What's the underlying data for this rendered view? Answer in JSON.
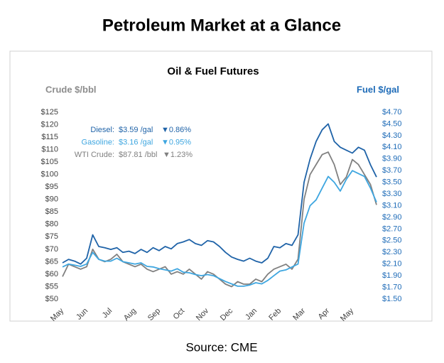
{
  "page_title": "Petroleum Market at a Glance",
  "source": "Source: CME",
  "chart_data": {
    "type": "line",
    "title": "Oil & Fuel Futures",
    "y_label": "Crude $/bbl",
    "y2_label": "Fuel $/gal",
    "categories": [
      "May",
      null,
      null,
      null,
      "Jun",
      null,
      null,
      null,
      "Jul",
      null,
      null,
      null,
      "Aug",
      null,
      null,
      null,
      "Sep",
      null,
      null,
      null,
      "Oct",
      null,
      null,
      null,
      "Nov",
      null,
      null,
      null,
      "Dec",
      null,
      null,
      null,
      "Jan",
      null,
      null,
      null,
      "Feb",
      null,
      null,
      null,
      "Mar",
      null,
      null,
      null,
      "Apr",
      null,
      null,
      null,
      "May",
      null,
      null,
      null,
      null
    ],
    "ylim": [
      50,
      125
    ],
    "yticks": [
      {
        "value": 50,
        "label": "$50"
      },
      {
        "value": 55,
        "label": "$55"
      },
      {
        "value": 60,
        "label": "$60"
      },
      {
        "value": 65,
        "label": "$65"
      },
      {
        "value": 70,
        "label": "$70"
      },
      {
        "value": 75,
        "label": "$75"
      },
      {
        "value": 80,
        "label": "$80"
      },
      {
        "value": 85,
        "label": "$85"
      },
      {
        "value": 90,
        "label": "$90"
      },
      {
        "value": 95,
        "label": "$95"
      },
      {
        "value": 100,
        "label": "$100"
      },
      {
        "value": 105,
        "label": "$105"
      },
      {
        "value": 110,
        "label": "$110"
      },
      {
        "value": 115,
        "label": "$115"
      },
      {
        "value": 120,
        "label": "$120"
      },
      {
        "value": 125,
        "label": "$125"
      }
    ],
    "y2lim": [
      1.5,
      4.7
    ],
    "y2ticks": [
      {
        "value": 1.5,
        "label": "$1.50"
      },
      {
        "value": 1.7,
        "label": "$1.70"
      },
      {
        "value": 1.9,
        "label": "$1.90"
      },
      {
        "value": 2.1,
        "label": "$2.10"
      },
      {
        "value": 2.3,
        "label": "$2.30"
      },
      {
        "value": 2.5,
        "label": "$2.50"
      },
      {
        "value": 2.7,
        "label": "$2.70"
      },
      {
        "value": 2.9,
        "label": "$2.90"
      },
      {
        "value": 3.1,
        "label": "$3.10"
      },
      {
        "value": 3.3,
        "label": "$3.30"
      },
      {
        "value": 3.5,
        "label": "$3.50"
      },
      {
        "value": 3.7,
        "label": "$3.70"
      },
      {
        "value": 3.9,
        "label": "$3.90"
      },
      {
        "value": 4.1,
        "label": "$4.10"
      },
      {
        "value": 4.3,
        "label": "$4.30"
      },
      {
        "value": 4.5,
        "label": "$4.50"
      },
      {
        "value": 4.7,
        "label": "$4.70"
      }
    ],
    "grid": false,
    "series": [
      {
        "name": "Diesel:",
        "price_label": "$3.59 /gal",
        "change_label": "▼0.86%",
        "color": "#1f63a8",
        "axis": "y2",
        "values": [
          2.12,
          2.18,
          2.15,
          2.1,
          2.2,
          2.6,
          2.4,
          2.38,
          2.35,
          2.38,
          2.3,
          2.32,
          2.28,
          2.35,
          2.3,
          2.38,
          2.33,
          2.4,
          2.36,
          2.45,
          2.48,
          2.52,
          2.45,
          2.42,
          2.5,
          2.48,
          2.4,
          2.3,
          2.22,
          2.18,
          2.15,
          2.2,
          2.15,
          2.12,
          2.2,
          2.4,
          2.38,
          2.45,
          2.42,
          2.6,
          3.5,
          3.9,
          4.2,
          4.4,
          4.5,
          4.2,
          4.1,
          4.05,
          4.0,
          4.1,
          4.05,
          3.8,
          3.59
        ]
      },
      {
        "name": "Gasoline:",
        "price_label": "$3.16 /gal",
        "change_label": "▼0.95%",
        "color": "#3ea6e0",
        "axis": "y2",
        "values": [
          2.05,
          2.1,
          2.08,
          2.06,
          2.1,
          2.3,
          2.18,
          2.15,
          2.15,
          2.2,
          2.14,
          2.12,
          2.1,
          2.12,
          2.06,
          2.05,
          2.02,
          2.0,
          1.98,
          2.02,
          1.96,
          1.95,
          1.92,
          1.9,
          1.92,
          1.9,
          1.85,
          1.8,
          1.76,
          1.72,
          1.72,
          1.74,
          1.78,
          1.76,
          1.82,
          1.9,
          1.98,
          2.0,
          2.05,
          2.1,
          2.8,
          3.1,
          3.2,
          3.4,
          3.6,
          3.5,
          3.35,
          3.55,
          3.7,
          3.65,
          3.6,
          3.4,
          3.16
        ]
      },
      {
        "name": "WTI Crude:",
        "price_label": "$87.81 /bbl",
        "change_label": "▼1.23%",
        "color": "#808080",
        "axis": "y",
        "values": [
          59,
          64,
          63,
          62,
          63,
          70,
          66,
          65,
          66,
          68,
          65,
          64,
          63,
          64,
          62,
          61,
          62,
          63,
          60,
          61,
          60,
          62,
          60,
          58,
          61,
          60,
          58,
          56,
          55,
          57,
          56,
          56,
          58,
          57,
          60,
          62,
          63,
          64,
          62,
          66,
          90,
          100,
          104,
          108,
          109,
          104,
          96,
          99,
          106,
          104,
          100,
          96,
          87.81
        ]
      }
    ]
  }
}
